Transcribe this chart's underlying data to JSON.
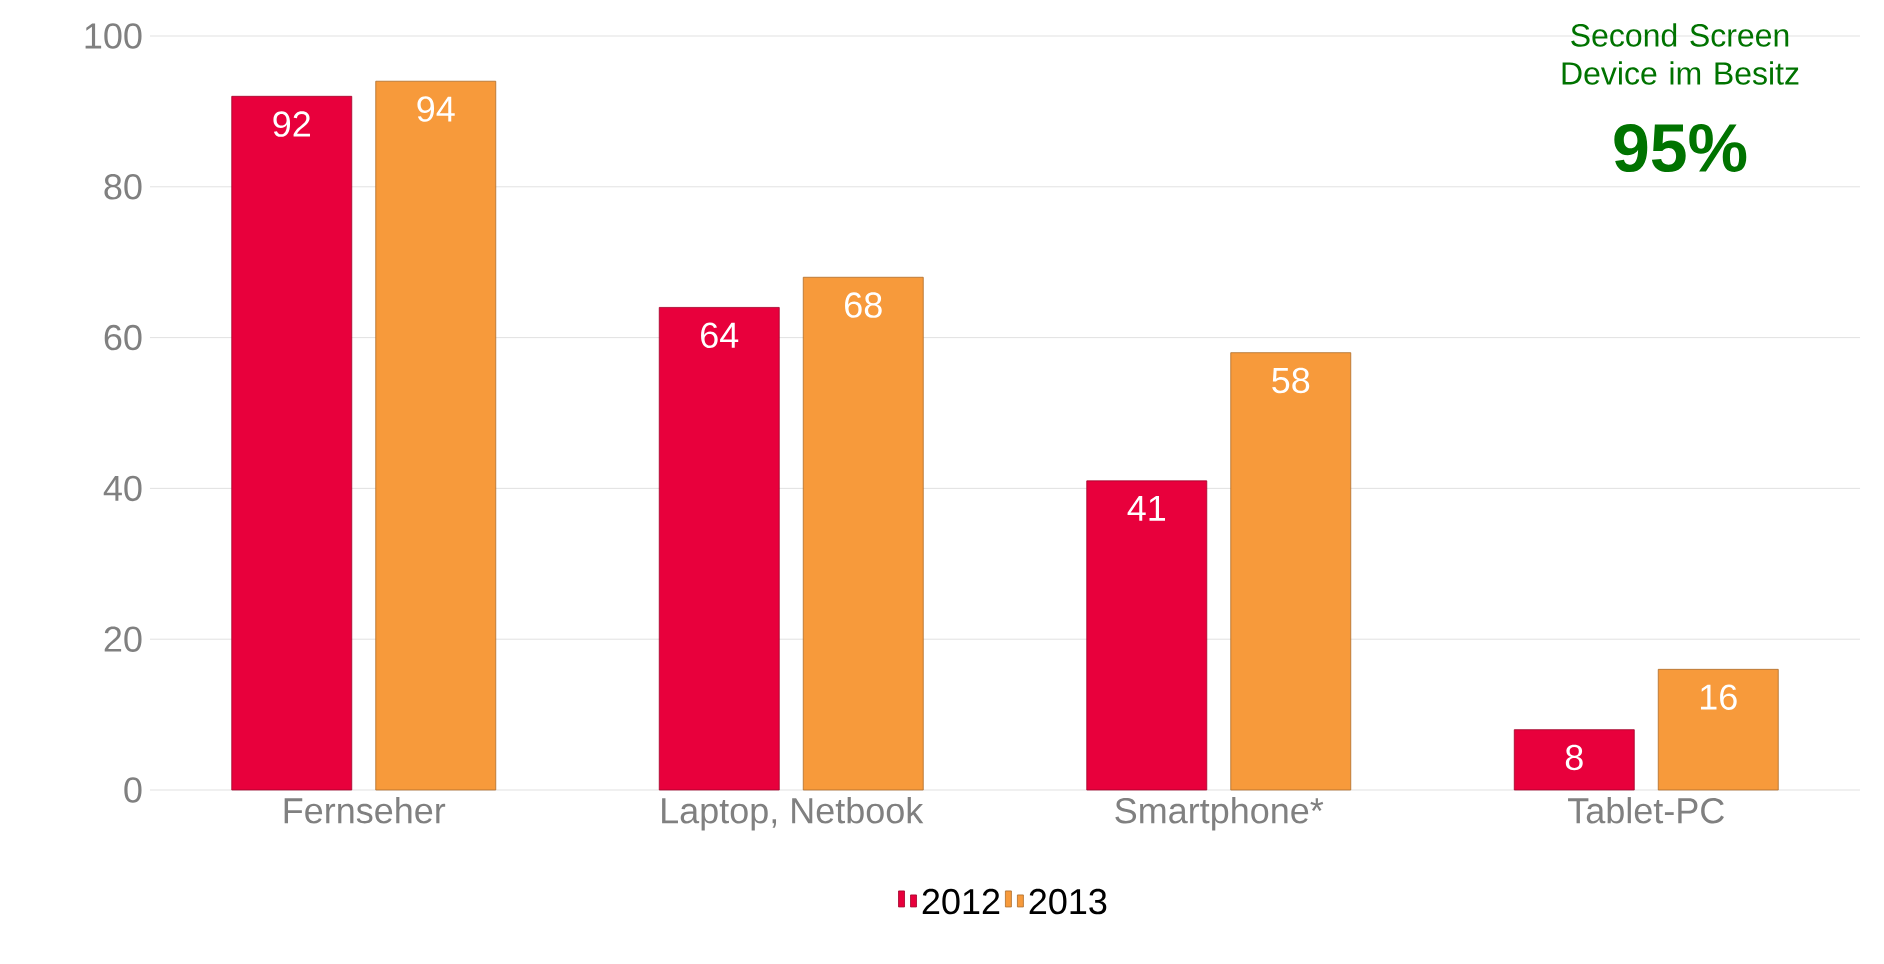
{
  "chart_data": {
    "type": "bar",
    "categories": [
      "Fernseher",
      "Laptop, Netbook",
      "Smartphone*",
      "Tablet-PC"
    ],
    "series": [
      {
        "name": "2012",
        "color": "#e8003c",
        "values": [
          92,
          64,
          41,
          8
        ]
      },
      {
        "name": "2013",
        "color": "#f79a3b",
        "values": [
          94,
          68,
          58,
          16
        ]
      }
    ],
    "ylim": [
      0,
      100
    ],
    "yticks": [
      0,
      20,
      40,
      60,
      80,
      100
    ],
    "grid": "y",
    "legend": "bottom",
    "data_labels": true,
    "annotations": [
      "Second Screen Device im Besitz",
      "95%"
    ]
  }
}
